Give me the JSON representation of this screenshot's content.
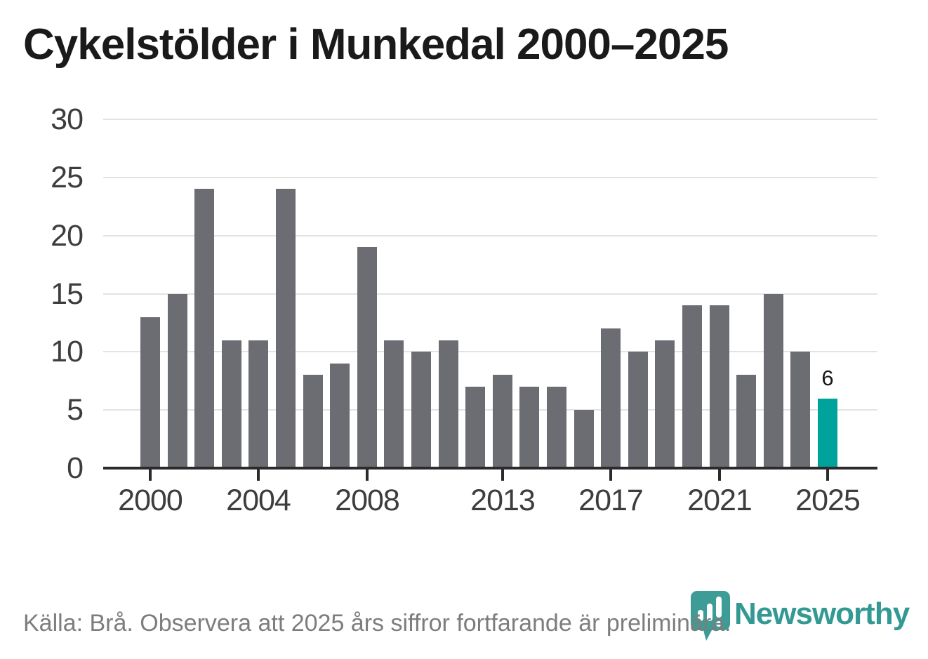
{
  "chart": {
    "title": "Cykelstölder i Munkedal 2000–2025"
  },
  "chart_data": {
    "type": "bar",
    "title": "Cykelstölder i Munkedal 2000–2025",
    "x": [
      2000,
      2001,
      2002,
      2003,
      2004,
      2005,
      2006,
      2007,
      2008,
      2009,
      2010,
      2011,
      2012,
      2013,
      2014,
      2015,
      2016,
      2017,
      2018,
      2019,
      2020,
      2021,
      2022,
      2023,
      2024,
      2025
    ],
    "values": [
      13,
      15,
      24,
      11,
      11,
      24,
      8,
      9,
      19,
      11,
      10,
      11,
      7,
      8,
      7,
      7,
      5,
      12,
      10,
      11,
      14,
      14,
      8,
      15,
      10,
      6
    ],
    "xlabel": "",
    "ylabel": "",
    "ylim": [
      0,
      30
    ],
    "yticks": [
      0,
      5,
      10,
      15,
      20,
      25,
      30
    ],
    "xticks": [
      2000,
      2004,
      2008,
      2013,
      2017,
      2021,
      2025
    ],
    "grid": true,
    "legend": false,
    "bar_color": "#6c6c73",
    "highlight_index": 25,
    "highlight_color": "#00a39b",
    "highlight_label": "6"
  },
  "footer": {
    "source": "Källa: Brå. Observera att 2025 års siffror fortfarande är preliminära.",
    "logo_text": "Newsworthy",
    "logo_icon": "newsworthy-pin-icon",
    "logo_color": "#339993"
  }
}
